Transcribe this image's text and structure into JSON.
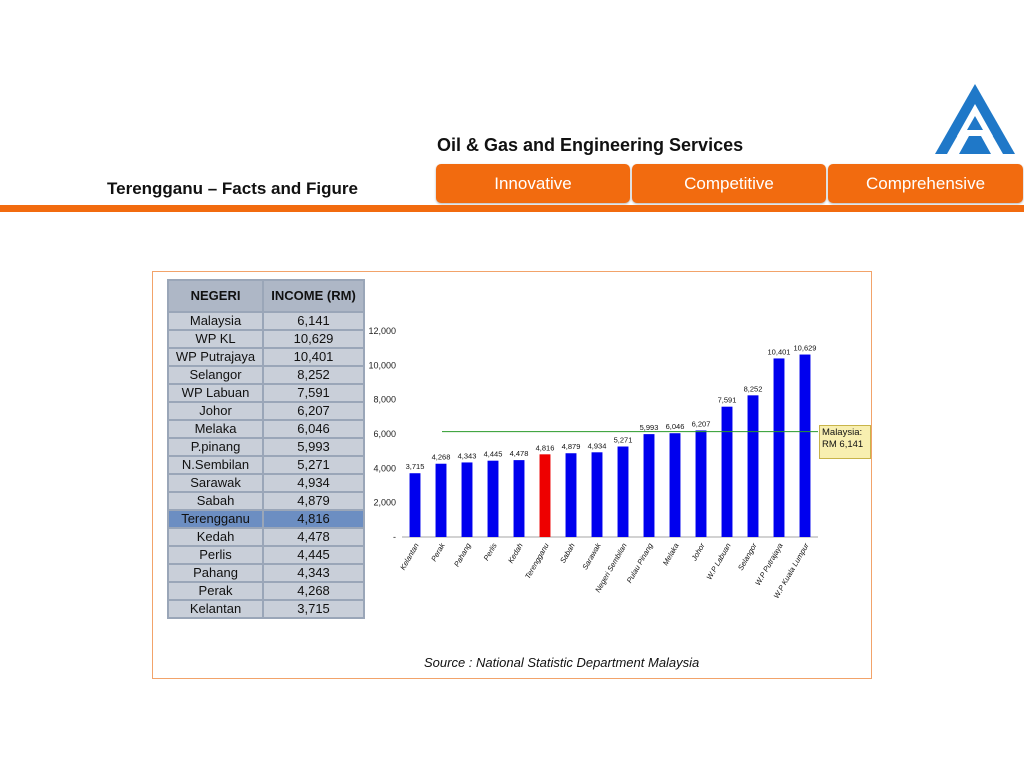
{
  "header": {
    "logo_name": "company-logo",
    "tagline": "Oil & Gas and Engineering Services",
    "subtitle": "Terengganu – Facts and Figure",
    "tabs": [
      {
        "label": "Innovative"
      },
      {
        "label": "Competitive"
      },
      {
        "label": "Comprehensive"
      }
    ],
    "accent_color": "#f26b0f"
  },
  "table": {
    "headers": [
      "NEGERI",
      "INCOME (RM)"
    ],
    "rows": [
      {
        "state": "Malaysia",
        "income": "6,141"
      },
      {
        "state": "WP KL",
        "income": "10,629"
      },
      {
        "state": "WP Putrajaya",
        "income": "10,401"
      },
      {
        "state": "Selangor",
        "income": "8,252"
      },
      {
        "state": "WP Labuan",
        "income": "7,591"
      },
      {
        "state": "Johor",
        "income": "6,207"
      },
      {
        "state": "Melaka",
        "income": "6,046"
      },
      {
        "state": "P.pinang",
        "income": "5,993"
      },
      {
        "state": "N.Sembilan",
        "income": "5,271"
      },
      {
        "state": "Sarawak",
        "income": "4,934"
      },
      {
        "state": "Sabah",
        "income": "4,879"
      },
      {
        "state": "Terengganu",
        "income": "4,816"
      },
      {
        "state": "Kedah",
        "income": "4,478"
      },
      {
        "state": "Perlis",
        "income": "4,445"
      },
      {
        "state": "Pahang",
        "income": "4,343"
      },
      {
        "state": "Perak",
        "income": "4,268"
      },
      {
        "state": "Kelantan",
        "income": "3,715"
      }
    ],
    "highlight": "Terengganu"
  },
  "chart_data": {
    "type": "bar",
    "categories": [
      "Kelantan",
      "Perak",
      "Pahang",
      "Perlis",
      "Kedah",
      "Terengganu",
      "Sabah",
      "Sarawak",
      "Negeri Sembilan",
      "Pulau Pinang",
      "Melaka",
      "Johor",
      "W.P Labuan",
      "Selangor",
      "W.P Putrajaya",
      "W.P Kuala Lumpur"
    ],
    "values": [
      3715,
      4268,
      4343,
      4445,
      4478,
      4816,
      4879,
      4934,
      5271,
      5993,
      6046,
      6207,
      7591,
      8252,
      10401,
      10629
    ],
    "data_labels": [
      "3,715",
      "4,268",
      "4,343",
      "4,445",
      "4,478",
      "4,816",
      "4,879",
      "4,934",
      "5,271",
      "5,993",
      "6,046",
      "6,207",
      "7,591",
      "8,252",
      "10,401",
      "10,629"
    ],
    "ylim": [
      0,
      12000
    ],
    "y_ticks": [
      "-",
      "2,000",
      "4,000",
      "6,000",
      "8,000",
      "10,000",
      "12,000"
    ],
    "y_tick_values": [
      0,
      2000,
      4000,
      6000,
      8000,
      10000,
      12000
    ],
    "bar_color": "#0000ee",
    "highlight_category": "Terengganu",
    "highlight_color": "#ee0000",
    "reference_line": {
      "value": 6141,
      "color": "#2a9a2a",
      "label_lines": [
        "Malaysia:",
        "RM 6,141"
      ]
    },
    "source": "Source : National Statistic Department Malaysia"
  }
}
